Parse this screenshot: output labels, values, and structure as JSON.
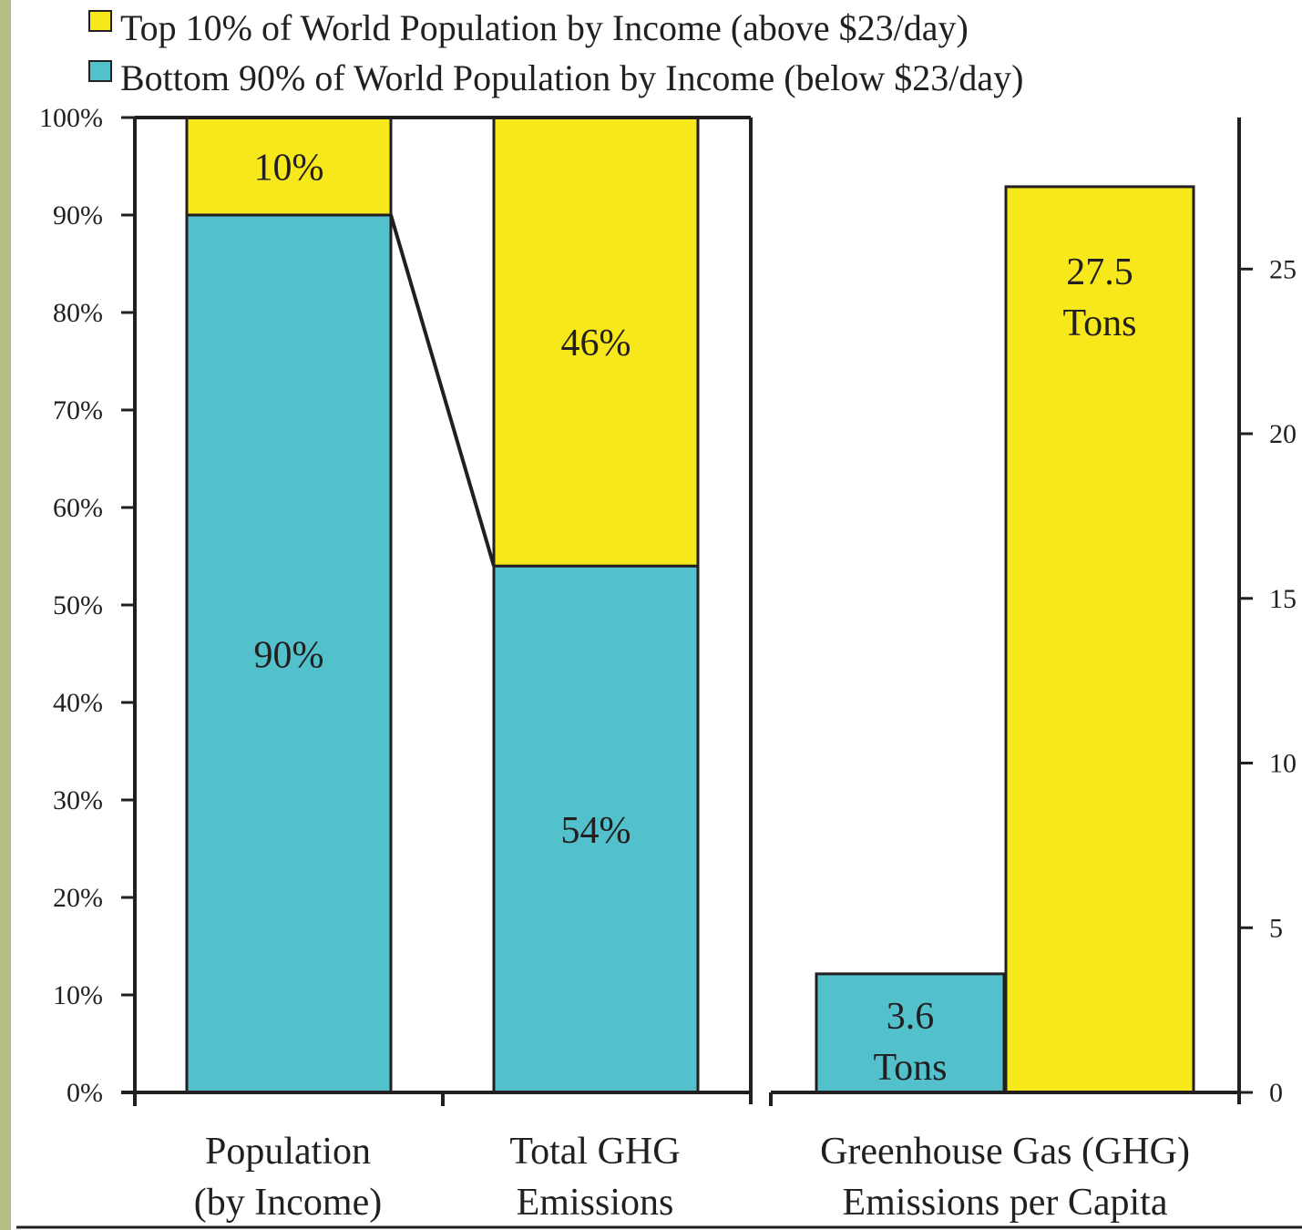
{
  "colors": {
    "top": "#f7e81c",
    "bottom": "#52c1cb",
    "frame": "#231f20",
    "left_strip": "#b5bf85"
  },
  "legend": [
    {
      "label": "Top 10% of World Population by Income (above $23/day)",
      "color": "#f7e81c"
    },
    {
      "label": "Bottom 90% of World Population by Income (below $23/day)",
      "color": "#52c1cb"
    }
  ],
  "chart_data": [
    {
      "type": "bar",
      "stacked": true,
      "y_unit": "percent",
      "ylim": [
        0,
        100
      ],
      "y_ticks": [
        "0%",
        "10%",
        "20%",
        "30%",
        "40%",
        "50%",
        "60%",
        "70%",
        "80%",
        "90%",
        "100%"
      ],
      "categories": [
        {
          "line1": "Population",
          "line2": "(by Income)"
        },
        {
          "line1": "Total GHG",
          "line2": "Emissions"
        }
      ],
      "series": [
        {
          "name": "Bottom 90% of World Population by Income (below $23/day)",
          "values": [
            90,
            54
          ],
          "labels": [
            "90%",
            "54%"
          ]
        },
        {
          "name": "Top 10% of World Population by Income (above $23/day)",
          "values": [
            10,
            46
          ],
          "labels": [
            "10%",
            "46%"
          ]
        }
      ],
      "connector": "line from top of 90% bottom segment to top of 54% bottom segment"
    },
    {
      "type": "bar",
      "y_unit": "tons per capita",
      "ylim": [
        0,
        29.6
      ],
      "y_ticks": [
        "0",
        "5",
        "10",
        "15",
        "20",
        "25"
      ],
      "category": {
        "line1": "Greenhouse Gas (GHG)",
        "line2": "Emissions per Capita"
      },
      "bars": [
        {
          "series": "bottom",
          "value": 3.6,
          "label_line1": "3.6",
          "label_line2": "Tons"
        },
        {
          "series": "top",
          "value": 27.5,
          "label_line1": "27.5",
          "label_line2": "Tons"
        }
      ]
    }
  ]
}
